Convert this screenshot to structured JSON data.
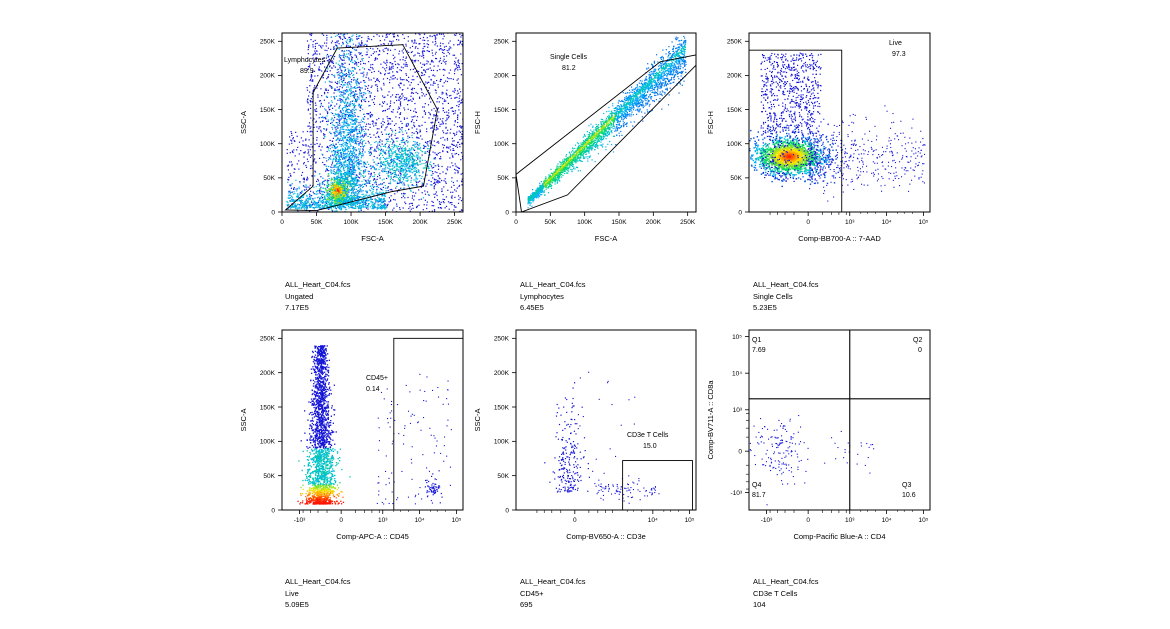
{
  "chart_data": [
    {
      "type": "scatter",
      "title": "",
      "xlabel": "FSC-A",
      "ylabel": "SSC-A",
      "xscale": "linear",
      "yscale": "linear",
      "xlim": [
        0,
        262144
      ],
      "ylim": [
        0,
        262144
      ],
      "x_ticks": [
        {
          "value": 0,
          "label": "0"
        },
        {
          "value": 50000,
          "label": "50K"
        },
        {
          "value": 100000,
          "label": "100K"
        },
        {
          "value": 150000,
          "label": "150K"
        },
        {
          "value": 200000,
          "label": "200K"
        },
        {
          "value": 250000,
          "label": "250K"
        }
      ],
      "y_ticks": [
        {
          "value": 0,
          "label": "0"
        },
        {
          "value": 50000,
          "label": "50K"
        },
        {
          "value": 100000,
          "label": "100K"
        },
        {
          "value": 150000,
          "label": "150K"
        },
        {
          "value": 200000,
          "label": "200K"
        },
        {
          "value": 250000,
          "label": "250K"
        }
      ],
      "gate": {
        "type": "polygon",
        "name": "Lymphocytes",
        "value": "89.9",
        "vertices": [
          [
            5000,
            3000
          ],
          [
            45000,
            38000
          ],
          [
            45000,
            175000
          ],
          [
            80000,
            240000
          ],
          [
            175000,
            245000
          ],
          [
            225000,
            150000
          ],
          [
            205000,
            38000
          ],
          [
            160000,
            30000
          ],
          [
            50000,
            2000
          ]
        ]
      },
      "populations": [
        {
          "x": [
            15000,
            175000
          ],
          "y": [
            3000,
            245000
          ],
          "density": "high"
        },
        {
          "x": [
            75000,
            110000
          ],
          "y": [
            20000,
            160000
          ],
          "density": "hotspot",
          "center": [
            85000,
            32000
          ]
        },
        {
          "x": [
            150000,
            260000
          ],
          "y": [
            40000,
            260000
          ],
          "density": "medium"
        }
      ],
      "caption": {
        "file": "ALL_Heart_C04.fcs",
        "population": "Ungated",
        "count": "7.17E5"
      }
    },
    {
      "type": "scatter",
      "title": "",
      "xlabel": "FSC-A",
      "ylabel": "FSC-H",
      "xscale": "linear",
      "yscale": "linear",
      "xlim": [
        0,
        262144
      ],
      "ylim": [
        0,
        262144
      ],
      "x_ticks": [
        {
          "value": 0,
          "label": "0"
        },
        {
          "value": 50000,
          "label": "50K"
        },
        {
          "value": 100000,
          "label": "100K"
        },
        {
          "value": 150000,
          "label": "150K"
        },
        {
          "value": 200000,
          "label": "200K"
        },
        {
          "value": 250000,
          "label": "250K"
        }
      ],
      "y_ticks": [
        {
          "value": 0,
          "label": "0"
        },
        {
          "value": 50000,
          "label": "50K"
        },
        {
          "value": 100000,
          "label": "100K"
        },
        {
          "value": 150000,
          "label": "150K"
        },
        {
          "value": 200000,
          "label": "200K"
        },
        {
          "value": 250000,
          "label": "250K"
        }
      ],
      "gate": {
        "type": "polygon",
        "name": "Single Cells",
        "value": "81.2",
        "vertices": [
          [
            0,
            55000
          ],
          [
            210000,
            220000
          ],
          [
            262144,
            230000
          ],
          [
            262144,
            215000
          ],
          [
            75000,
            25000
          ],
          [
            8000,
            0
          ]
        ]
      },
      "populations": [
        {
          "x": [
            15000,
            250000
          ],
          "y": [
            10000,
            210000
          ],
          "density": "diagonal"
        }
      ],
      "caption": {
        "file": "ALL_Heart_C04.fcs",
        "population": "Lymphocytes",
        "count": "6.45E5"
      }
    },
    {
      "type": "scatter",
      "title": "",
      "xlabel": "Comp-BB700-A :: 7-AAD",
      "ylabel": "FSC-H",
      "xscale": "biexponential",
      "yscale": "linear",
      "xlim": [
        -3000,
        150000
      ],
      "ylim": [
        0,
        262144
      ],
      "x_ticks": [
        {
          "value": 0,
          "label": "0"
        },
        {
          "value": 1000,
          "label": "10³"
        },
        {
          "value": 10000,
          "label": "10⁴"
        },
        {
          "value": 100000,
          "label": "10⁵"
        }
      ],
      "y_ticks": [
        {
          "value": 0,
          "label": "0"
        },
        {
          "value": 50000,
          "label": "50K"
        },
        {
          "value": 100000,
          "label": "100K"
        },
        {
          "value": 150000,
          "label": "150K"
        },
        {
          "value": 200000,
          "label": "200K"
        },
        {
          "value": 250000,
          "label": "250K"
        }
      ],
      "gate": {
        "type": "rectangle",
        "name": "Live",
        "value": "97.3",
        "x_range": [
          -3000,
          600
        ],
        "y_range": [
          0,
          237000
        ]
      },
      "populations": [
        {
          "center": [
            0,
            82000
          ],
          "density": "hotspot"
        }
      ],
      "caption": {
        "file": "ALL_Heart_C04.fcs",
        "population": "Single Cells",
        "count": "5.23E5"
      }
    },
    {
      "type": "scatter",
      "title": "",
      "xlabel": "Comp-APC-A :: CD45",
      "ylabel": "SSC-A",
      "xscale": "biexponential",
      "yscale": "linear",
      "xlim": [
        -3000,
        150000
      ],
      "ylim": [
        0,
        262144
      ],
      "x_ticks": [
        {
          "value": -1000,
          "label": "-10³"
        },
        {
          "value": 0,
          "label": "0"
        },
        {
          "value": 1000,
          "label": "10³"
        },
        {
          "value": 10000,
          "label": "10⁴"
        },
        {
          "value": 100000,
          "label": "10⁵"
        }
      ],
      "y_ticks": [
        {
          "value": 0,
          "label": "0"
        },
        {
          "value": 50000,
          "label": "50K"
        },
        {
          "value": 100000,
          "label": "100K"
        },
        {
          "value": 150000,
          "label": "150K"
        },
        {
          "value": 200000,
          "label": "200K"
        },
        {
          "value": 250000,
          "label": "250K"
        }
      ],
      "gate": {
        "type": "rectangle",
        "name": "CD45+",
        "value": "0.14",
        "x_range": [
          2000,
          150000
        ],
        "y_range": [
          0,
          250000
        ]
      },
      "populations": [
        {
          "center": [
            0,
            25000
          ],
          "density": "hotspot"
        },
        {
          "center": [
            50000,
            30000
          ],
          "density": "low"
        }
      ],
      "caption": {
        "file": "ALL_Heart_C04.fcs",
        "population": "Live",
        "count": "5.09E5"
      }
    },
    {
      "type": "scatter",
      "title": "",
      "xlabel": "Comp-BV650-A :: CD3e",
      "ylabel": "SSC-A",
      "xscale": "biexponential",
      "yscale": "linear",
      "xlim": [
        -3000,
        150000
      ],
      "ylim": [
        0,
        262144
      ],
      "x_ticks": [
        {
          "value": 0,
          "label": "0"
        },
        {
          "value": 10000,
          "label": "10⁴"
        },
        {
          "value": 100000,
          "label": "10⁵"
        }
      ],
      "y_ticks": [
        {
          "value": 0,
          "label": "0"
        },
        {
          "value": 50000,
          "label": "50K"
        },
        {
          "value": 100000,
          "label": "100K"
        },
        {
          "value": 150000,
          "label": "150K"
        },
        {
          "value": 200000,
          "label": "200K"
        },
        {
          "value": 250000,
          "label": "250K"
        }
      ],
      "gate": {
        "type": "rectangle",
        "name": "CD3e T Cells",
        "value": "15.0",
        "x_range": [
          1500,
          120000
        ],
        "y_range": [
          0,
          72000
        ]
      },
      "populations": [
        {
          "center": [
            -300,
            40000
          ],
          "density": "sparse"
        },
        {
          "center": [
            10000,
            30000
          ],
          "density": "sparse"
        }
      ],
      "caption": {
        "file": "ALL_Heart_C04.fcs",
        "population": "CD45+",
        "count": "695"
      }
    },
    {
      "type": "scatter",
      "title": "",
      "xlabel": "Comp-Pacific Blue-A :: CD4",
      "ylabel": "Comp-BV711-A :: CD8a",
      "xscale": "biexponential",
      "yscale": "biexponential",
      "xlim": [
        -3000,
        150000
      ],
      "ylim": [
        -3000,
        150000
      ],
      "x_ticks": [
        {
          "value": -1000,
          "label": "-10³"
        },
        {
          "value": 0,
          "label": "0"
        },
        {
          "value": 1000,
          "label": "10³"
        },
        {
          "value": 10000,
          "label": "10⁴"
        },
        {
          "value": 100000,
          "label": "10⁵"
        }
      ],
      "y_ticks": [
        {
          "value": -1000,
          "label": "-10³"
        },
        {
          "value": 0,
          "label": "0"
        },
        {
          "value": 1000,
          "label": "10³"
        },
        {
          "value": 10000,
          "label": "10⁴"
        },
        {
          "value": 100000,
          "label": "10⁵"
        }
      ],
      "gate": {
        "type": "quadrant",
        "x_split": 1000,
        "y_split": 2000,
        "quadrants": [
          {
            "name": "Q1",
            "value": "7.69",
            "corner": "top-left"
          },
          {
            "name": "Q2",
            "value": "0",
            "corner": "top-right"
          },
          {
            "name": "Q3",
            "value": "10.6",
            "corner": "bottom-right"
          },
          {
            "name": "Q4",
            "value": "81.7",
            "corner": "bottom-left"
          }
        ]
      },
      "populations": [
        {
          "center": [
            0,
            0
          ],
          "density": "sparse"
        }
      ],
      "caption": {
        "file": "ALL_Heart_C04.fcs",
        "population": "CD3e T Cells",
        "count": "104"
      }
    }
  ]
}
